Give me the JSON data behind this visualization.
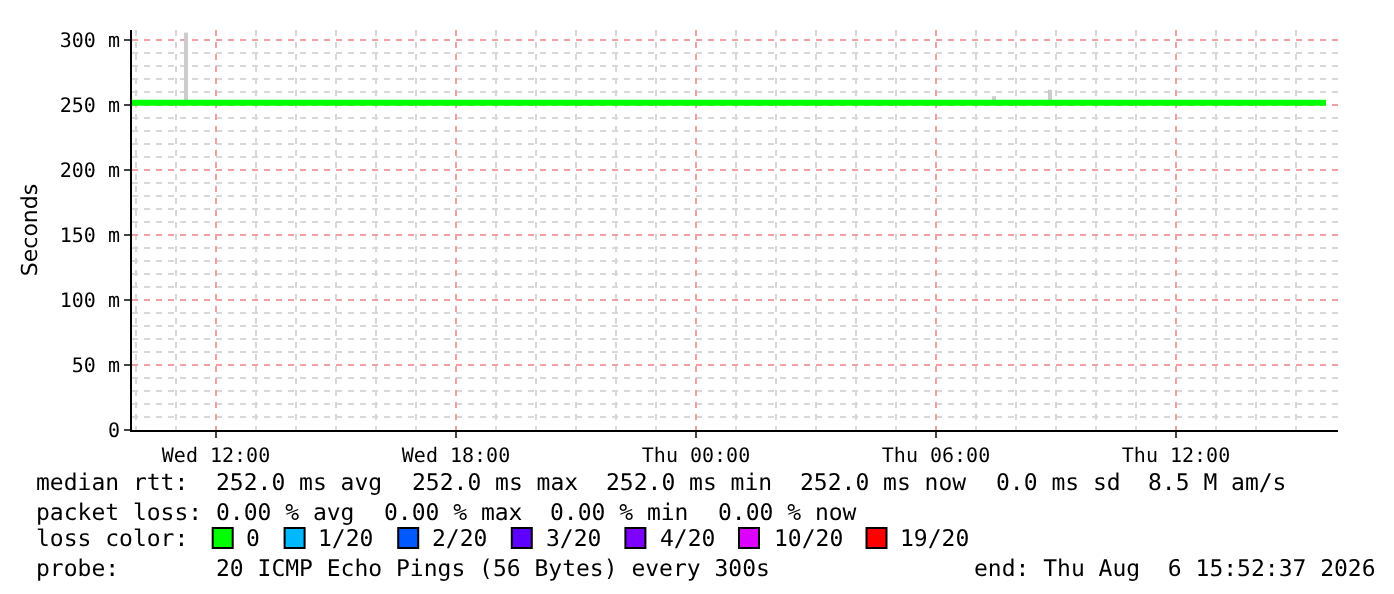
{
  "chart_data": {
    "type": "line",
    "ylabel": "Seconds",
    "legend_title": "loss color:",
    "legend": "bottom",
    "grid": true,
    "xlim": [
      "2026-08-05T09:54",
      "2026-08-06T16:03"
    ],
    "xticks": [
      {
        "value": "2026-08-05T12:00",
        "label": "Wed 12:00"
      },
      {
        "value": "2026-08-05T18:00",
        "label": "Wed 18:00"
      },
      {
        "value": "2026-08-06T00:00",
        "label": "Thu 00:00"
      },
      {
        "value": "2026-08-06T06:00",
        "label": "Thu 06:00"
      },
      {
        "value": "2026-08-06T12:00",
        "label": "Thu 12:00"
      }
    ],
    "ylim": [
      0,
      308
    ],
    "yticks": [
      {
        "value": 0,
        "label": "0"
      },
      {
        "value": 50,
        "label": "50 m"
      },
      {
        "value": 100,
        "label": "100 m"
      },
      {
        "value": 150,
        "label": "150 m"
      },
      {
        "value": 200,
        "label": "200 m"
      },
      {
        "value": 250,
        "label": "250 m"
      },
      {
        "value": 300,
        "label": "300 m"
      }
    ],
    "series": [
      {
        "type": "bar",
        "color": "#cccccc",
        "x": [
          "2026-08-05T11:15",
          "2026-08-06T07:26",
          "2026-08-06T08:51"
        ],
        "base": [
          252,
          252,
          252
        ],
        "values": [
          54,
          5,
          10
        ]
      },
      {
        "name": "0",
        "color": "#00ff00",
        "x": [
          "2026-08-05T09:54",
          "2026-08-06T15:45"
        ],
        "values": [
          252,
          252
        ]
      },
      {
        "name": "1/20",
        "color": "#00b8ff"
      },
      {
        "name": "2/20",
        "color": "#0059ff"
      },
      {
        "name": "3/20",
        "color": "#5e00ff"
      },
      {
        "name": "4/20",
        "color": "#7e00ff"
      },
      {
        "name": "10/20",
        "color": "#dd00ff"
      },
      {
        "name": "19/20",
        "color": "#ff0000"
      }
    ],
    "annotations": [
      "median rtt:",
      "252.0 ms avg",
      "252.0 ms max",
      "252.0 ms min",
      "252.0 ms now",
      "0.0 ms sd",
      "8.5 M am/s",
      "packet loss:",
      "0.00 % avg",
      "0.00 % max",
      "0.00 % min",
      "0.00 % now",
      "probe:",
      "20 ICMP Echo Pings (56 Bytes) every 300s",
      "end: Thu Aug  6 15:52:37 2026"
    ]
  }
}
